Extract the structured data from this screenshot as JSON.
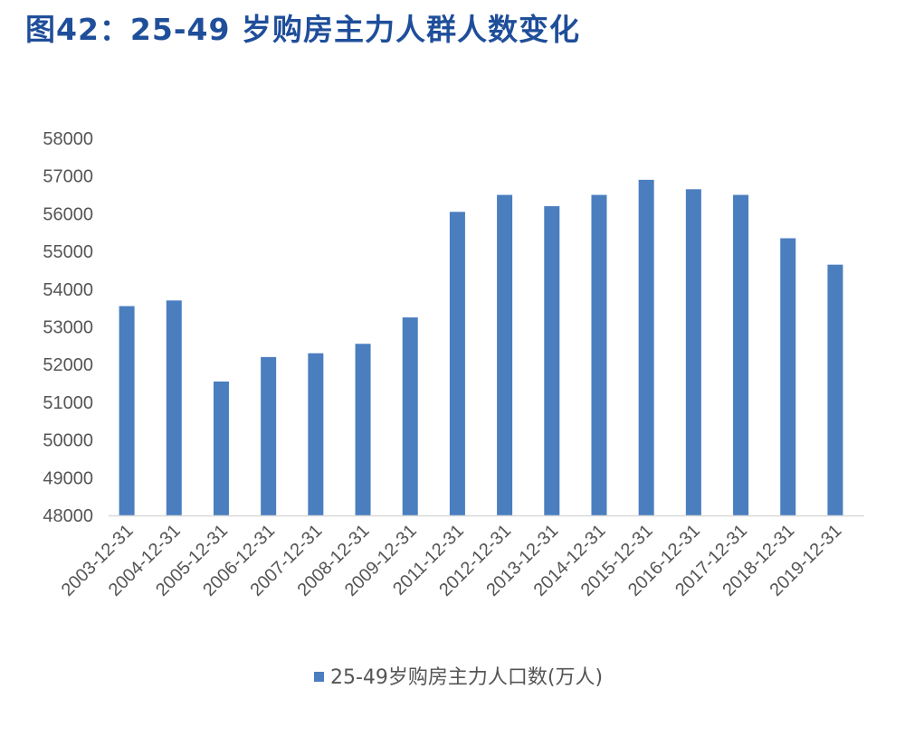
{
  "title": "图42：25-49 岁购房主力人群人数变化",
  "colors": {
    "bar": "#4a7ebf",
    "title": "#1f4e9a",
    "axis": "#d9d9d9"
  },
  "chart_data": {
    "type": "bar",
    "title": "图42：25-49 岁购房主力人群人数变化",
    "xlabel": "",
    "ylabel": "",
    "ylim": [
      48000,
      58000
    ],
    "yticks": [
      48000,
      49000,
      50000,
      51000,
      52000,
      53000,
      54000,
      55000,
      56000,
      57000,
      58000
    ],
    "grid": false,
    "legend_position": "bottom",
    "categories": [
      "2003-12-31",
      "2004-12-31",
      "2005-12-31",
      "2006-12-31",
      "2007-12-31",
      "2008-12-31",
      "2009-12-31",
      "2011-12-31",
      "2012-12-31",
      "2013-12-31",
      "2014-12-31",
      "2015-12-31",
      "2016-12-31",
      "2017-12-31",
      "2018-12-31",
      "2019-12-31"
    ],
    "series": [
      {
        "name": "25-49岁购房主力人口数(万人)",
        "values": [
          53550,
          53700,
          51550,
          52200,
          52300,
          52550,
          53250,
          56050,
          56500,
          56200,
          56500,
          56900,
          56650,
          56500,
          55350,
          54650
        ]
      }
    ]
  }
}
